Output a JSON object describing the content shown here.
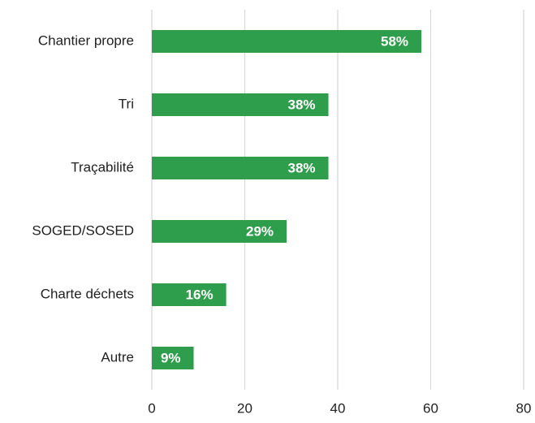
{
  "chart_data": {
    "type": "hbar",
    "categories": [
      "Chantier propre",
      "Tri",
      "Traçabilité",
      "SOGED/SOSED",
      "Charte déchets",
      "Autre"
    ],
    "values": [
      58,
      38,
      38,
      29,
      16,
      9
    ],
    "value_labels": [
      "58%",
      "38%",
      "38%",
      "29%",
      "16%",
      "9%"
    ],
    "color": "#2f9e4c",
    "xlim": [
      0,
      80
    ],
    "xticks": [
      0,
      20,
      40,
      60,
      80
    ],
    "grid": true
  }
}
